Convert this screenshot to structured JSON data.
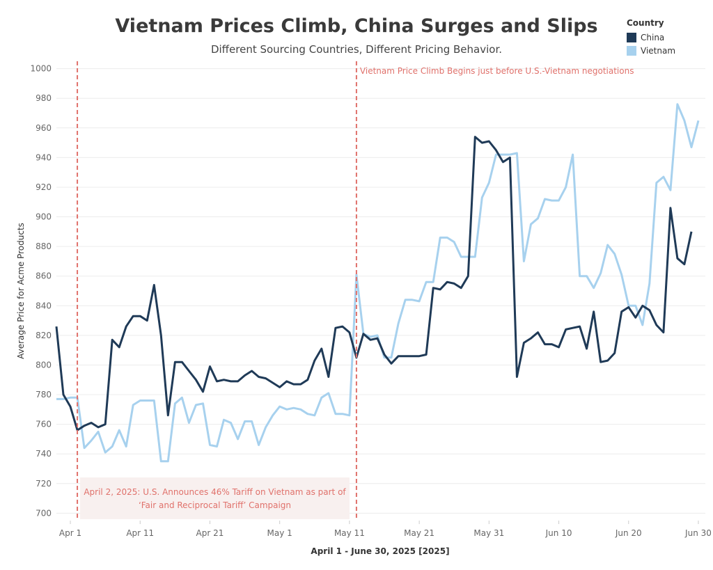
{
  "header": {
    "title": "Vietnam Prices Climb, China Surges and Slips",
    "subtitle": "Different Sourcing Countries, Different Pricing Behavior."
  },
  "legend": {
    "title": "Country",
    "items": [
      {
        "label": "China",
        "color": "#1f3a57"
      },
      {
        "label": "Vietnam",
        "color": "#a7d1ee"
      }
    ]
  },
  "annotations": {
    "april2": {
      "line1": "April 2,  2025: U.S. Announces 46% Tariff on Vietnam as part of",
      "line2": "‘Fair and Reciprocal Tariff’ Campaign",
      "date": "2025-04-02"
    },
    "may12": {
      "text": "Vietnam Price Climb Begins just before U.S.-Vietnam negotiations",
      "date": "2025-05-12"
    },
    "line_color": "#e0716b"
  },
  "chart_data": {
    "type": "line",
    "xlabel": "April 1 - June 30, 2025 [2025]",
    "ylabel": "Average Price for Acme Products",
    "ylim": [
      695,
      1005
    ],
    "yticks": [
      700,
      720,
      740,
      760,
      780,
      800,
      820,
      840,
      860,
      880,
      900,
      920,
      940,
      960,
      980,
      1000
    ],
    "x_start": "2025-03-30",
    "x_end": "2025-07-01",
    "xticks": [
      {
        "label": "Apr 1",
        "date": "2025-04-01"
      },
      {
        "label": "Apr 11",
        "date": "2025-04-11"
      },
      {
        "label": "Apr 21",
        "date": "2025-04-21"
      },
      {
        "label": "May 1",
        "date": "2025-05-01"
      },
      {
        "label": "May 11",
        "date": "2025-05-11"
      },
      {
        "label": "May 21",
        "date": "2025-05-21"
      },
      {
        "label": "May 31",
        "date": "2025-05-31"
      },
      {
        "label": "Jun 10",
        "date": "2025-06-10"
      },
      {
        "label": "Jun 20",
        "date": "2025-06-20"
      },
      {
        "label": "Jun 30",
        "date": "2025-06-30"
      }
    ],
    "grid": true,
    "series": [
      {
        "name": "Vietnam",
        "color": "#a7d1ee",
        "points": [
          [
            "2025-03-30",
            777
          ],
          [
            "2025-03-31",
            777
          ],
          [
            "2025-04-01",
            778
          ],
          [
            "2025-04-02",
            778
          ],
          [
            "2025-04-03",
            744
          ],
          [
            "2025-04-04",
            749
          ],
          [
            "2025-04-05",
            755
          ],
          [
            "2025-04-06",
            741
          ],
          [
            "2025-04-07",
            745
          ],
          [
            "2025-04-08",
            756
          ],
          [
            "2025-04-09",
            745
          ],
          [
            "2025-04-10",
            773
          ],
          [
            "2025-04-11",
            776
          ],
          [
            "2025-04-12",
            776
          ],
          [
            "2025-04-13",
            776
          ],
          [
            "2025-04-14",
            735
          ],
          [
            "2025-04-15",
            735
          ],
          [
            "2025-04-16",
            774
          ],
          [
            "2025-04-17",
            778
          ],
          [
            "2025-04-18",
            761
          ],
          [
            "2025-04-19",
            773
          ],
          [
            "2025-04-20",
            774
          ],
          [
            "2025-04-21",
            746
          ],
          [
            "2025-04-22",
            745
          ],
          [
            "2025-04-23",
            763
          ],
          [
            "2025-04-24",
            761
          ],
          [
            "2025-04-25",
            750
          ],
          [
            "2025-04-26",
            762
          ],
          [
            "2025-04-27",
            762
          ],
          [
            "2025-04-28",
            746
          ],
          [
            "2025-04-29",
            758
          ],
          [
            "2025-04-30",
            766
          ],
          [
            "2025-05-01",
            772
          ],
          [
            "2025-05-02",
            770
          ],
          [
            "2025-05-03",
            771
          ],
          [
            "2025-05-04",
            770
          ],
          [
            "2025-05-05",
            767
          ],
          [
            "2025-05-06",
            766
          ],
          [
            "2025-05-07",
            778
          ],
          [
            "2025-05-08",
            781
          ],
          [
            "2025-05-09",
            767
          ],
          [
            "2025-05-10",
            767
          ],
          [
            "2025-05-11",
            766
          ],
          [
            "2025-05-12",
            861
          ],
          [
            "2025-05-13",
            821
          ],
          [
            "2025-05-14",
            819
          ],
          [
            "2025-05-15",
            820
          ],
          [
            "2025-05-16",
            805
          ],
          [
            "2025-05-17",
            805
          ],
          [
            "2025-05-18",
            828
          ],
          [
            "2025-05-19",
            844
          ],
          [
            "2025-05-20",
            844
          ],
          [
            "2025-05-21",
            843
          ],
          [
            "2025-05-22",
            856
          ],
          [
            "2025-05-23",
            856
          ],
          [
            "2025-05-24",
            886
          ],
          [
            "2025-05-25",
            886
          ],
          [
            "2025-05-26",
            883
          ],
          [
            "2025-05-27",
            873
          ],
          [
            "2025-05-28",
            873
          ],
          [
            "2025-05-29",
            873
          ],
          [
            "2025-05-30",
            913
          ],
          [
            "2025-05-31",
            923
          ],
          [
            "2025-06-01",
            942
          ],
          [
            "2025-06-02",
            942
          ],
          [
            "2025-06-03",
            942
          ],
          [
            "2025-06-04",
            943
          ],
          [
            "2025-06-05",
            870
          ],
          [
            "2025-06-06",
            895
          ],
          [
            "2025-06-07",
            899
          ],
          [
            "2025-06-08",
            912
          ],
          [
            "2025-06-09",
            911
          ],
          [
            "2025-06-10",
            911
          ],
          [
            "2025-06-11",
            920
          ],
          [
            "2025-06-12",
            942
          ],
          [
            "2025-06-13",
            860
          ],
          [
            "2025-06-14",
            860
          ],
          [
            "2025-06-15",
            852
          ],
          [
            "2025-06-16",
            862
          ],
          [
            "2025-06-17",
            881
          ],
          [
            "2025-06-18",
            875
          ],
          [
            "2025-06-19",
            861
          ],
          [
            "2025-06-20",
            840
          ],
          [
            "2025-06-21",
            840
          ],
          [
            "2025-06-22",
            827
          ],
          [
            "2025-06-23",
            855
          ],
          [
            "2025-06-24",
            923
          ],
          [
            "2025-06-25",
            927
          ],
          [
            "2025-06-26",
            918
          ],
          [
            "2025-06-27",
            976
          ],
          [
            "2025-06-28",
            965
          ],
          [
            "2025-06-29",
            947
          ],
          [
            "2025-06-30",
            965
          ]
        ]
      },
      {
        "name": "China",
        "color": "#1f3a57",
        "points": [
          [
            "2025-03-30",
            826
          ],
          [
            "2025-03-31",
            780
          ],
          [
            "2025-04-01",
            772
          ],
          [
            "2025-04-02",
            756
          ],
          [
            "2025-04-03",
            759
          ],
          [
            "2025-04-04",
            761
          ],
          [
            "2025-04-05",
            758
          ],
          [
            "2025-04-06",
            760
          ],
          [
            "2025-04-07",
            817
          ],
          [
            "2025-04-08",
            812
          ],
          [
            "2025-04-09",
            826
          ],
          [
            "2025-04-10",
            833
          ],
          [
            "2025-04-11",
            833
          ],
          [
            "2025-04-12",
            830
          ],
          [
            "2025-04-13",
            854
          ],
          [
            "2025-04-14",
            820
          ],
          [
            "2025-04-15",
            766
          ],
          [
            "2025-04-16",
            802
          ],
          [
            "2025-04-17",
            802
          ],
          [
            "2025-04-18",
            796
          ],
          [
            "2025-04-19",
            790
          ],
          [
            "2025-04-20",
            782
          ],
          [
            "2025-04-21",
            799
          ],
          [
            "2025-04-22",
            789
          ],
          [
            "2025-04-23",
            790
          ],
          [
            "2025-04-24",
            789
          ],
          [
            "2025-04-25",
            789
          ],
          [
            "2025-04-26",
            793
          ],
          [
            "2025-04-27",
            796
          ],
          [
            "2025-04-28",
            792
          ],
          [
            "2025-04-29",
            791
          ],
          [
            "2025-04-30",
            788
          ],
          [
            "2025-05-01",
            785
          ],
          [
            "2025-05-02",
            789
          ],
          [
            "2025-05-03",
            787
          ],
          [
            "2025-05-04",
            787
          ],
          [
            "2025-05-05",
            790
          ],
          [
            "2025-05-06",
            803
          ],
          [
            "2025-05-07",
            811
          ],
          [
            "2025-05-08",
            792
          ],
          [
            "2025-05-09",
            825
          ],
          [
            "2025-05-10",
            826
          ],
          [
            "2025-05-11",
            822
          ],
          [
            "2025-05-12",
            805
          ],
          [
            "2025-05-13",
            821
          ],
          [
            "2025-05-14",
            817
          ],
          [
            "2025-05-15",
            818
          ],
          [
            "2025-05-16",
            807
          ],
          [
            "2025-05-17",
            801
          ],
          [
            "2025-05-18",
            806
          ],
          [
            "2025-05-19",
            806
          ],
          [
            "2025-05-20",
            806
          ],
          [
            "2025-05-21",
            806
          ],
          [
            "2025-05-22",
            807
          ],
          [
            "2025-05-23",
            852
          ],
          [
            "2025-05-24",
            851
          ],
          [
            "2025-05-25",
            856
          ],
          [
            "2025-05-26",
            855
          ],
          [
            "2025-05-27",
            852
          ],
          [
            "2025-05-28",
            860
          ],
          [
            "2025-05-29",
            954
          ],
          [
            "2025-05-30",
            950
          ],
          [
            "2025-05-31",
            951
          ],
          [
            "2025-06-01",
            945
          ],
          [
            "2025-06-02",
            937
          ],
          [
            "2025-06-03",
            940
          ],
          [
            "2025-06-04",
            792
          ],
          [
            "2025-06-05",
            815
          ],
          [
            "2025-06-06",
            818
          ],
          [
            "2025-06-07",
            822
          ],
          [
            "2025-06-08",
            814
          ],
          [
            "2025-06-09",
            814
          ],
          [
            "2025-06-10",
            812
          ],
          [
            "2025-06-11",
            824
          ],
          [
            "2025-06-12",
            825
          ],
          [
            "2025-06-13",
            826
          ],
          [
            "2025-06-14",
            811
          ],
          [
            "2025-06-15",
            836
          ],
          [
            "2025-06-16",
            802
          ],
          [
            "2025-06-17",
            803
          ],
          [
            "2025-06-18",
            808
          ],
          [
            "2025-06-19",
            836
          ],
          [
            "2025-06-20",
            839
          ],
          [
            "2025-06-21",
            832
          ],
          [
            "2025-06-22",
            840
          ],
          [
            "2025-06-23",
            837
          ],
          [
            "2025-06-24",
            827
          ],
          [
            "2025-06-25",
            822
          ],
          [
            "2025-06-26",
            906
          ],
          [
            "2025-06-27",
            872
          ],
          [
            "2025-06-28",
            868
          ],
          [
            "2025-06-29",
            890
          ]
        ]
      }
    ]
  }
}
